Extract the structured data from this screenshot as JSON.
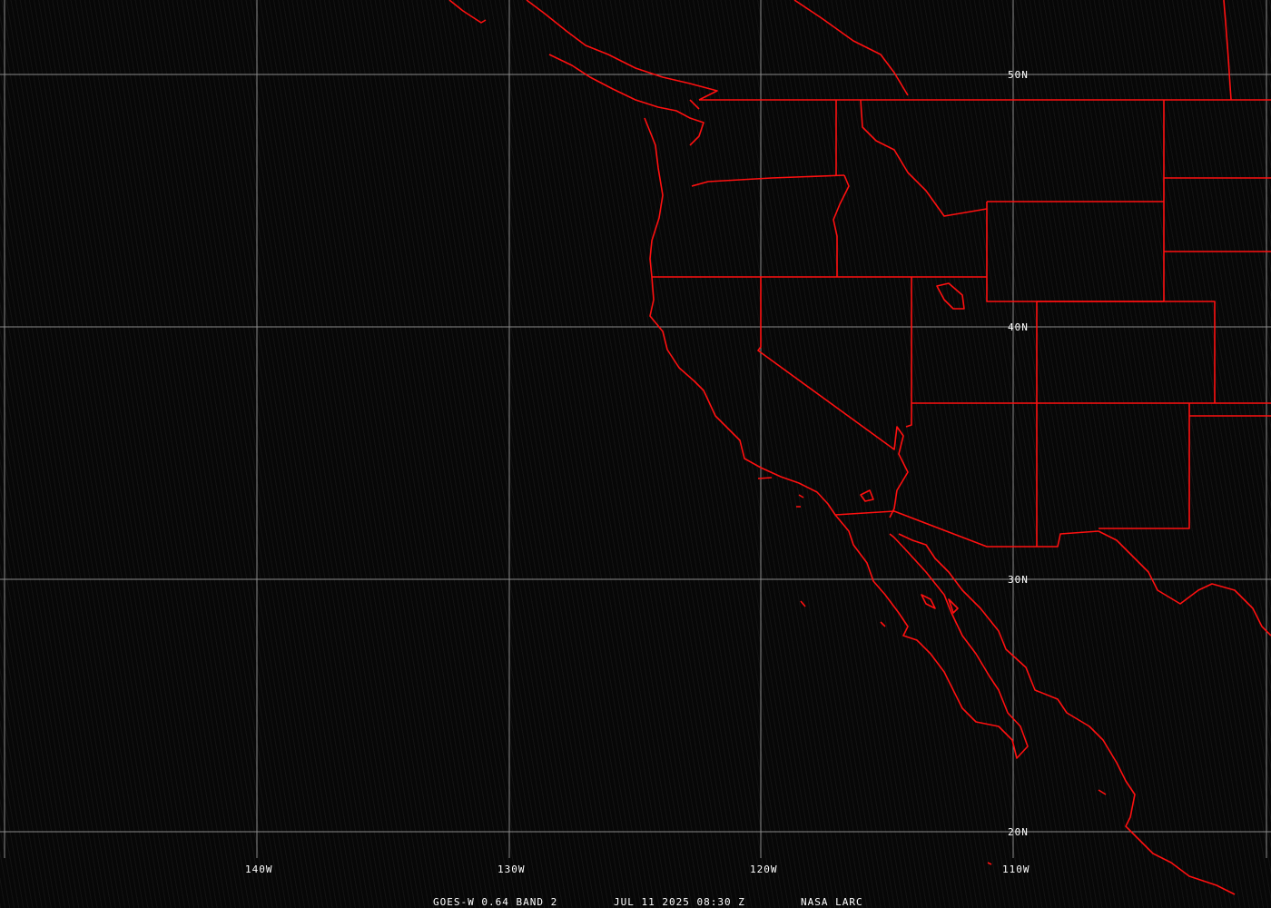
{
  "caption": {
    "satellite": "GOES-W 0.64 BAND 2",
    "datetime": "JUL 11 2025 08:30 Z",
    "source": "NASA LARC"
  },
  "grid": {
    "longitudes": [
      "140W",
      "130W",
      "120W",
      "110W"
    ],
    "latitudes": [
      "50N",
      "40N",
      "30N",
      "20N"
    ]
  },
  "colors": {
    "boundaries": "#ff1010",
    "grid": "#8a8a8a",
    "background": "#070707"
  }
}
